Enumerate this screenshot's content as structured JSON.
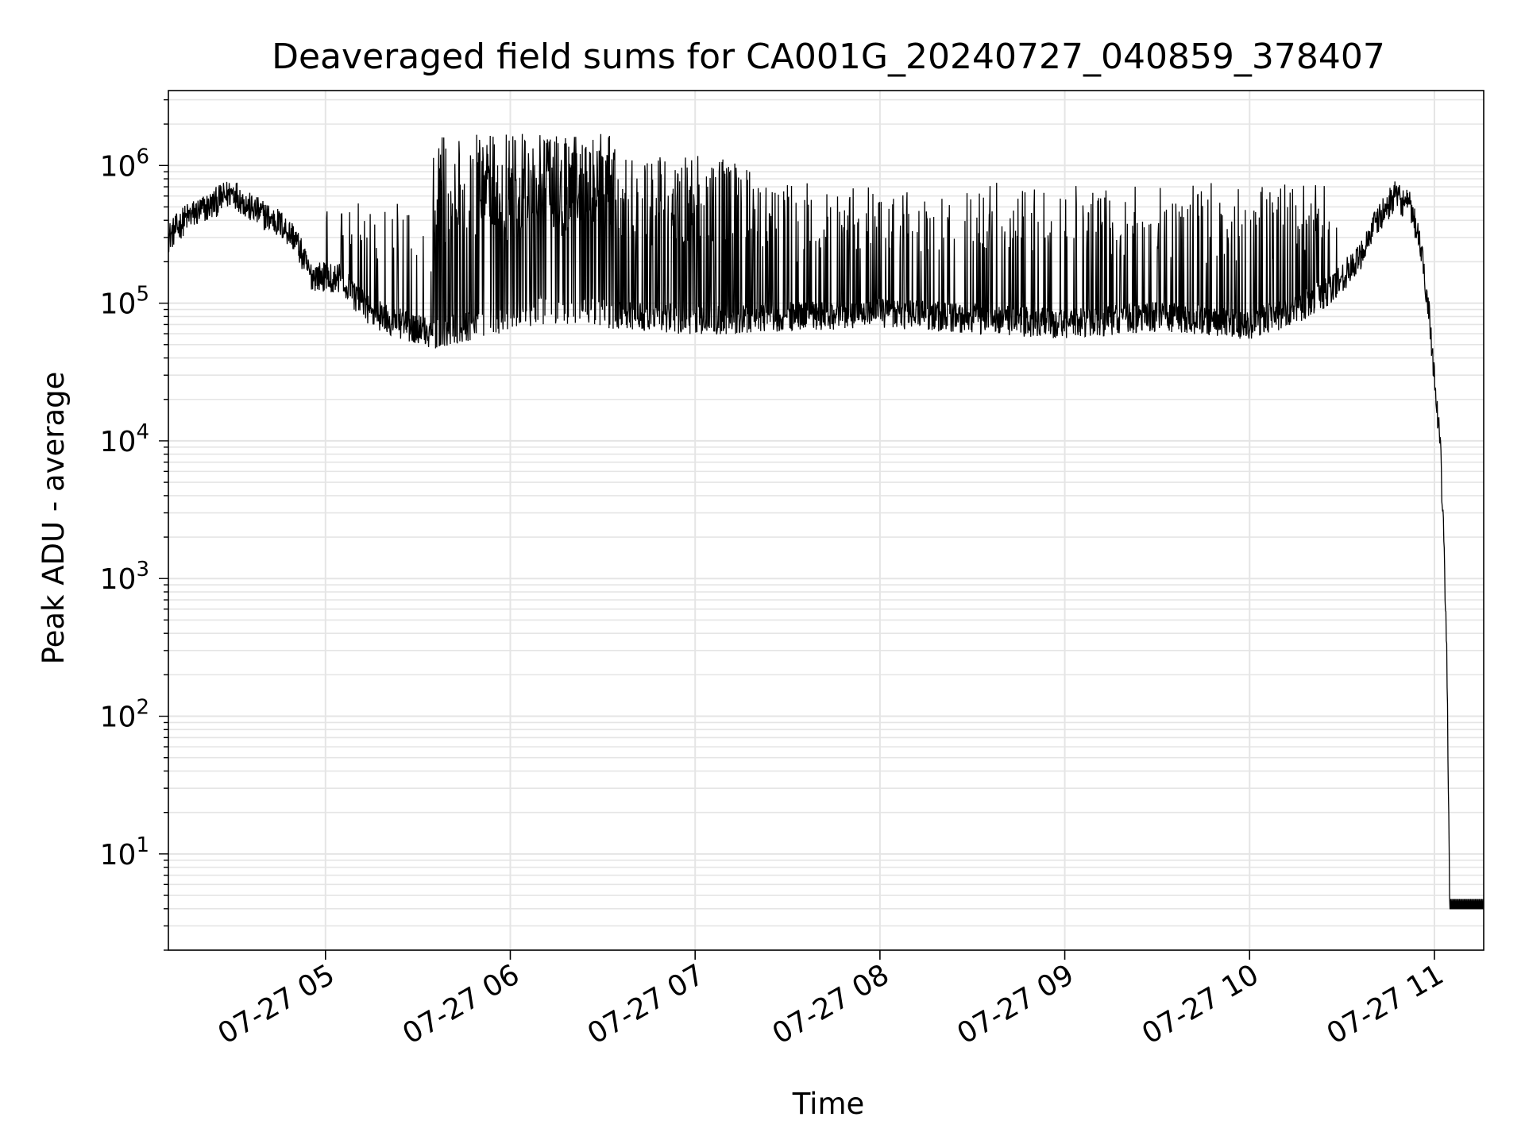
{
  "chart_data": {
    "type": "line",
    "title": "Deaveraged field sums for CA001G_20240727_040859_378407",
    "xlabel": "Time",
    "ylabel": "Peak ADU - average",
    "yscale": "log",
    "ylim": [
      2,
      3500000
    ],
    "xlim": [
      "2024-07-27 04:09",
      "2024-07-27 11:16"
    ],
    "grid": true,
    "line_color": "#000000",
    "grid_color": "#e5e5e5",
    "x_ticks": [
      {
        "time": "2024-07-27 05:00",
        "label": "07-27 05"
      },
      {
        "time": "2024-07-27 06:00",
        "label": "07-27 06"
      },
      {
        "time": "2024-07-27 07:00",
        "label": "07-27 07"
      },
      {
        "time": "2024-07-27 08:00",
        "label": "07-27 08"
      },
      {
        "time": "2024-07-27 09:00",
        "label": "07-27 09"
      },
      {
        "time": "2024-07-27 10:00",
        "label": "07-27 10"
      },
      {
        "time": "2024-07-27 11:00",
        "label": "07-27 11"
      }
    ],
    "y_ticks": [
      {
        "value": 10,
        "base": "10",
        "exp": "1"
      },
      {
        "value": 100,
        "base": "10",
        "exp": "2"
      },
      {
        "value": 1000,
        "base": "10",
        "exp": "3"
      },
      {
        "value": 10000,
        "base": "10",
        "exp": "4"
      },
      {
        "value": 100000,
        "base": "10",
        "exp": "5"
      },
      {
        "value": 1000000,
        "base": "10",
        "exp": "6"
      }
    ],
    "series": [
      {
        "baseline": [
          [
            "2024-07-27 04:09",
            300000
          ],
          [
            "2024-07-27 04:15",
            420000
          ],
          [
            "2024-07-27 04:22",
            500000
          ],
          [
            "2024-07-27 04:30",
            650000
          ],
          [
            "2024-07-27 04:35",
            500000
          ],
          [
            "2024-07-27 04:45",
            380000
          ],
          [
            "2024-07-27 04:50",
            300000
          ],
          [
            "2024-07-27 04:55",
            160000
          ],
          [
            "2024-07-27 05:05",
            150000
          ],
          [
            "2024-07-27 05:10",
            110000
          ],
          [
            "2024-07-27 05:15",
            85000
          ],
          [
            "2024-07-27 05:25",
            70000
          ],
          [
            "2024-07-27 05:35",
            60000
          ],
          [
            "2024-07-27 05:50",
            70000
          ],
          [
            "2024-07-27 06:10",
            90000
          ],
          [
            "2024-07-27 07:00",
            75000
          ],
          [
            "2024-07-27 08:00",
            85000
          ],
          [
            "2024-07-27 09:00",
            70000
          ],
          [
            "2024-07-27 09:30",
            80000
          ],
          [
            "2024-07-27 10:00",
            70000
          ],
          [
            "2024-07-27 10:15",
            90000
          ],
          [
            "2024-07-27 10:25",
            120000
          ],
          [
            "2024-07-27 10:35",
            200000
          ],
          [
            "2024-07-27 10:40",
            350000
          ],
          [
            "2024-07-27 10:47",
            600000
          ],
          [
            "2024-07-27 10:52",
            500000
          ],
          [
            "2024-07-27 10:55",
            300000
          ],
          [
            "2024-07-27 10:58",
            100000
          ],
          [
            "2024-07-27 11:00",
            30000
          ],
          [
            "2024-07-27 11:02",
            8000
          ],
          [
            "2024-07-27 11:03",
            2000
          ],
          [
            "2024-07-27 11:04",
            300
          ],
          [
            "2024-07-27 11:05",
            4
          ],
          [
            "2024-07-27 11:16",
            4
          ]
        ],
        "spike_bands": [
          {
            "start": "2024-07-27 05:00",
            "end": "2024-07-27 05:35",
            "peak": 600000,
            "rate": 0.15
          },
          {
            "start": "2024-07-27 05:35",
            "end": "2024-07-27 05:50",
            "peak": 1700000,
            "rate": 0.35
          },
          {
            "start": "2024-07-27 05:50",
            "end": "2024-07-27 06:35",
            "peak": 1700000,
            "rate": 0.7
          },
          {
            "start": "2024-07-27 06:35",
            "end": "2024-07-27 07:20",
            "peak": 1200000,
            "rate": 0.4
          },
          {
            "start": "2024-07-27 07:20",
            "end": "2024-07-27 10:30",
            "peak": 750000,
            "rate": 0.2
          }
        ]
      }
    ]
  }
}
